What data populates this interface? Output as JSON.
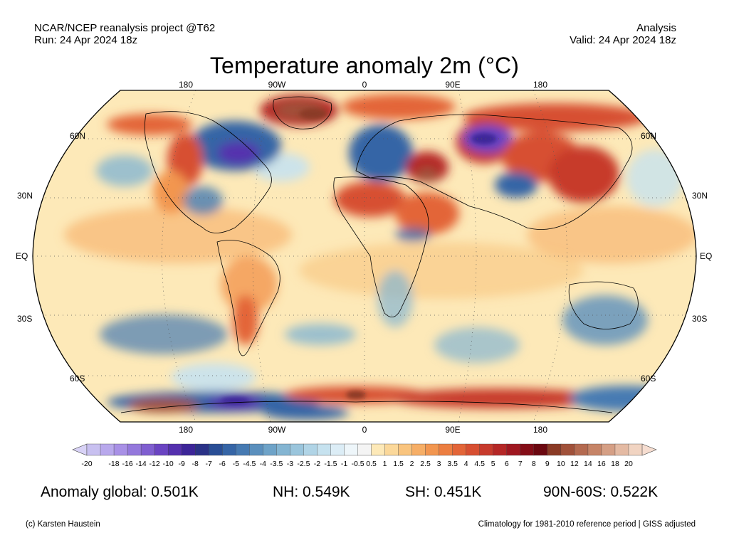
{
  "header": {
    "project": "NCAR/NCEP reanalysis project @T62",
    "run": "Run: 24 Apr 2024 18z",
    "kind": "Analysis",
    "valid": "Valid: 24 Apr 2024 18z"
  },
  "title": "Temperature anomaly 2m (°C)",
  "map": {
    "projection": "robinson",
    "lon_labels": [
      "180",
      "90W",
      "0",
      "90E",
      "180"
    ],
    "lat_labels": [
      "60N",
      "30N",
      "EQ",
      "30S",
      "60S"
    ],
    "gridlines": "dotted",
    "ocean_color": "#fde9b8",
    "land_outline_color": "#000000"
  },
  "colorbar": {
    "tick_labels": [
      "-20",
      "-18",
      "-16",
      "-14",
      "-12",
      "-10",
      "-9",
      "-8",
      "-7",
      "-6",
      "-5",
      "-4.5",
      "-4",
      "-3.5",
      "-3",
      "-2.5",
      "-2",
      "-1.5",
      "-1",
      "-0.5",
      "0.5",
      "1",
      "1.5",
      "2",
      "2.5",
      "3",
      "3.5",
      "4",
      "4.5",
      "5",
      "6",
      "7",
      "8",
      "9",
      "10",
      "12",
      "14",
      "16",
      "18",
      "20"
    ],
    "colors": [
      "#c8c0f0",
      "#b8a8ec",
      "#a890e6",
      "#9478dc",
      "#7f5ed0",
      "#6a44c2",
      "#5430ae",
      "#3c2598",
      "#2a3287",
      "#294e95",
      "#3565a6",
      "#467ab2",
      "#5a8fbd",
      "#6ea3c8",
      "#84b5d2",
      "#9ac5dc",
      "#b0d4e6",
      "#c6e2ef",
      "#dcedf6",
      "#eef6fa",
      "#f4f4f4",
      "#fde9b8",
      "#fbd89a",
      "#f9c47e",
      "#f6ae66",
      "#f29650",
      "#ec7e41",
      "#e36538",
      "#d74f31",
      "#c73a2c",
      "#b52726",
      "#9f1720",
      "#840d17",
      "#6b0810",
      "#8a3a25",
      "#a0513a",
      "#b46a50",
      "#c68467",
      "#d59f85",
      "#e4baa3",
      "#f1d4c2"
    ],
    "under_color": "#d8d2f6",
    "over_color": "#f6ddd0"
  },
  "stats": {
    "global": "Anomaly global: 0.501K",
    "nh": "NH: 0.549K",
    "sh": "SH: 0.451K",
    "arctic": "90N-60S: 0.522K"
  },
  "footer": {
    "credit": "(c) Karsten Haustein",
    "note": "Climatology for 1981-2010 reference period | GISS adjusted"
  }
}
